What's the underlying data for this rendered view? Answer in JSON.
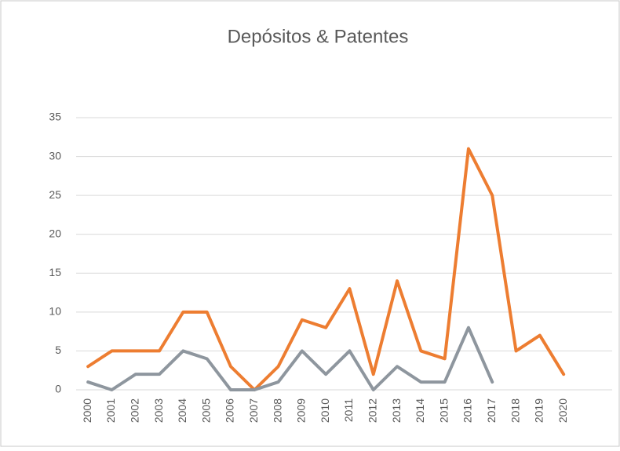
{
  "chart_data": {
    "type": "line",
    "title": "Depósitos & Patentes",
    "categories": [
      "2000",
      "2001",
      "2002",
      "2003",
      "2004",
      "2005",
      "2006",
      "2007",
      "2008",
      "2009",
      "2010",
      "2011",
      "2012",
      "2013",
      "2014",
      "2015",
      "2016",
      "2017",
      "2018",
      "2019",
      "2020"
    ],
    "series": [
      {
        "color": "#ed7d31",
        "values": [
          3,
          5,
          5,
          5,
          10,
          10,
          3,
          0,
          3,
          9,
          8,
          13,
          2,
          14,
          5,
          4,
          31,
          25,
          5,
          7,
          2
        ]
      },
      {
        "color": "#8e969e",
        "values": [
          1,
          0,
          2,
          2,
          5,
          4,
          0,
          0,
          1,
          5,
          2,
          5,
          0,
          3,
          1,
          1,
          8,
          1,
          null,
          null,
          null
        ]
      }
    ],
    "ylim": [
      0,
      35
    ],
    "yticks": [
      0,
      5,
      10,
      15,
      20,
      25,
      30,
      35
    ],
    "grid": true
  }
}
